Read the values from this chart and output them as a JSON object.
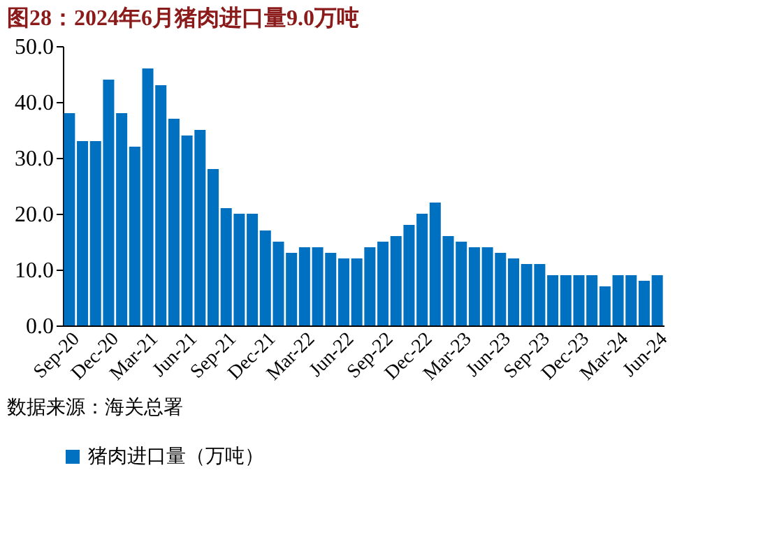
{
  "chart_data": {
    "type": "bar",
    "title": "图28：2024年6月猪肉进口量9.0万吨",
    "categories": [
      "Sep-20",
      null,
      null,
      "Dec-20",
      null,
      null,
      "Mar-21",
      null,
      null,
      "Jun-21",
      null,
      null,
      "Sep-21",
      null,
      null,
      "Dec-21",
      null,
      null,
      "Mar-22",
      null,
      null,
      "Jun-22",
      null,
      null,
      "Sep-22",
      null,
      null,
      "Dec-22",
      null,
      null,
      "Mar-23",
      null,
      null,
      "Jun-23",
      null,
      null,
      "Sep-23",
      null,
      null,
      "Dec-23",
      null,
      null,
      "Mar-24",
      null,
      null,
      "Jun-24"
    ],
    "series": [
      {
        "name": "猪肉进口量（万吨）",
        "color": "#0070c0",
        "values": [
          38,
          33,
          33,
          44,
          38,
          32,
          46,
          43,
          37,
          34,
          35,
          28,
          21,
          20,
          20,
          17,
          15,
          13,
          14,
          14,
          13,
          12,
          12,
          14,
          15,
          16,
          18,
          20,
          22,
          16,
          15,
          14,
          14,
          13,
          12,
          11,
          11,
          9,
          9,
          9,
          9,
          7,
          9,
          9,
          8,
          9
        ]
      }
    ],
    "ylim": [
      0,
      50
    ],
    "yticks": [
      {
        "value": 0,
        "label": "0.0"
      },
      {
        "value": 10,
        "label": "10.0"
      },
      {
        "value": 20,
        "label": "20.0"
      },
      {
        "value": 30,
        "label": "30.0"
      },
      {
        "value": 40,
        "label": "40.0"
      },
      {
        "value": 50,
        "label": "50.0"
      }
    ],
    "grid": false,
    "legend": "bottom",
    "annotations": [
      "数据来源：海关总署"
    ]
  }
}
